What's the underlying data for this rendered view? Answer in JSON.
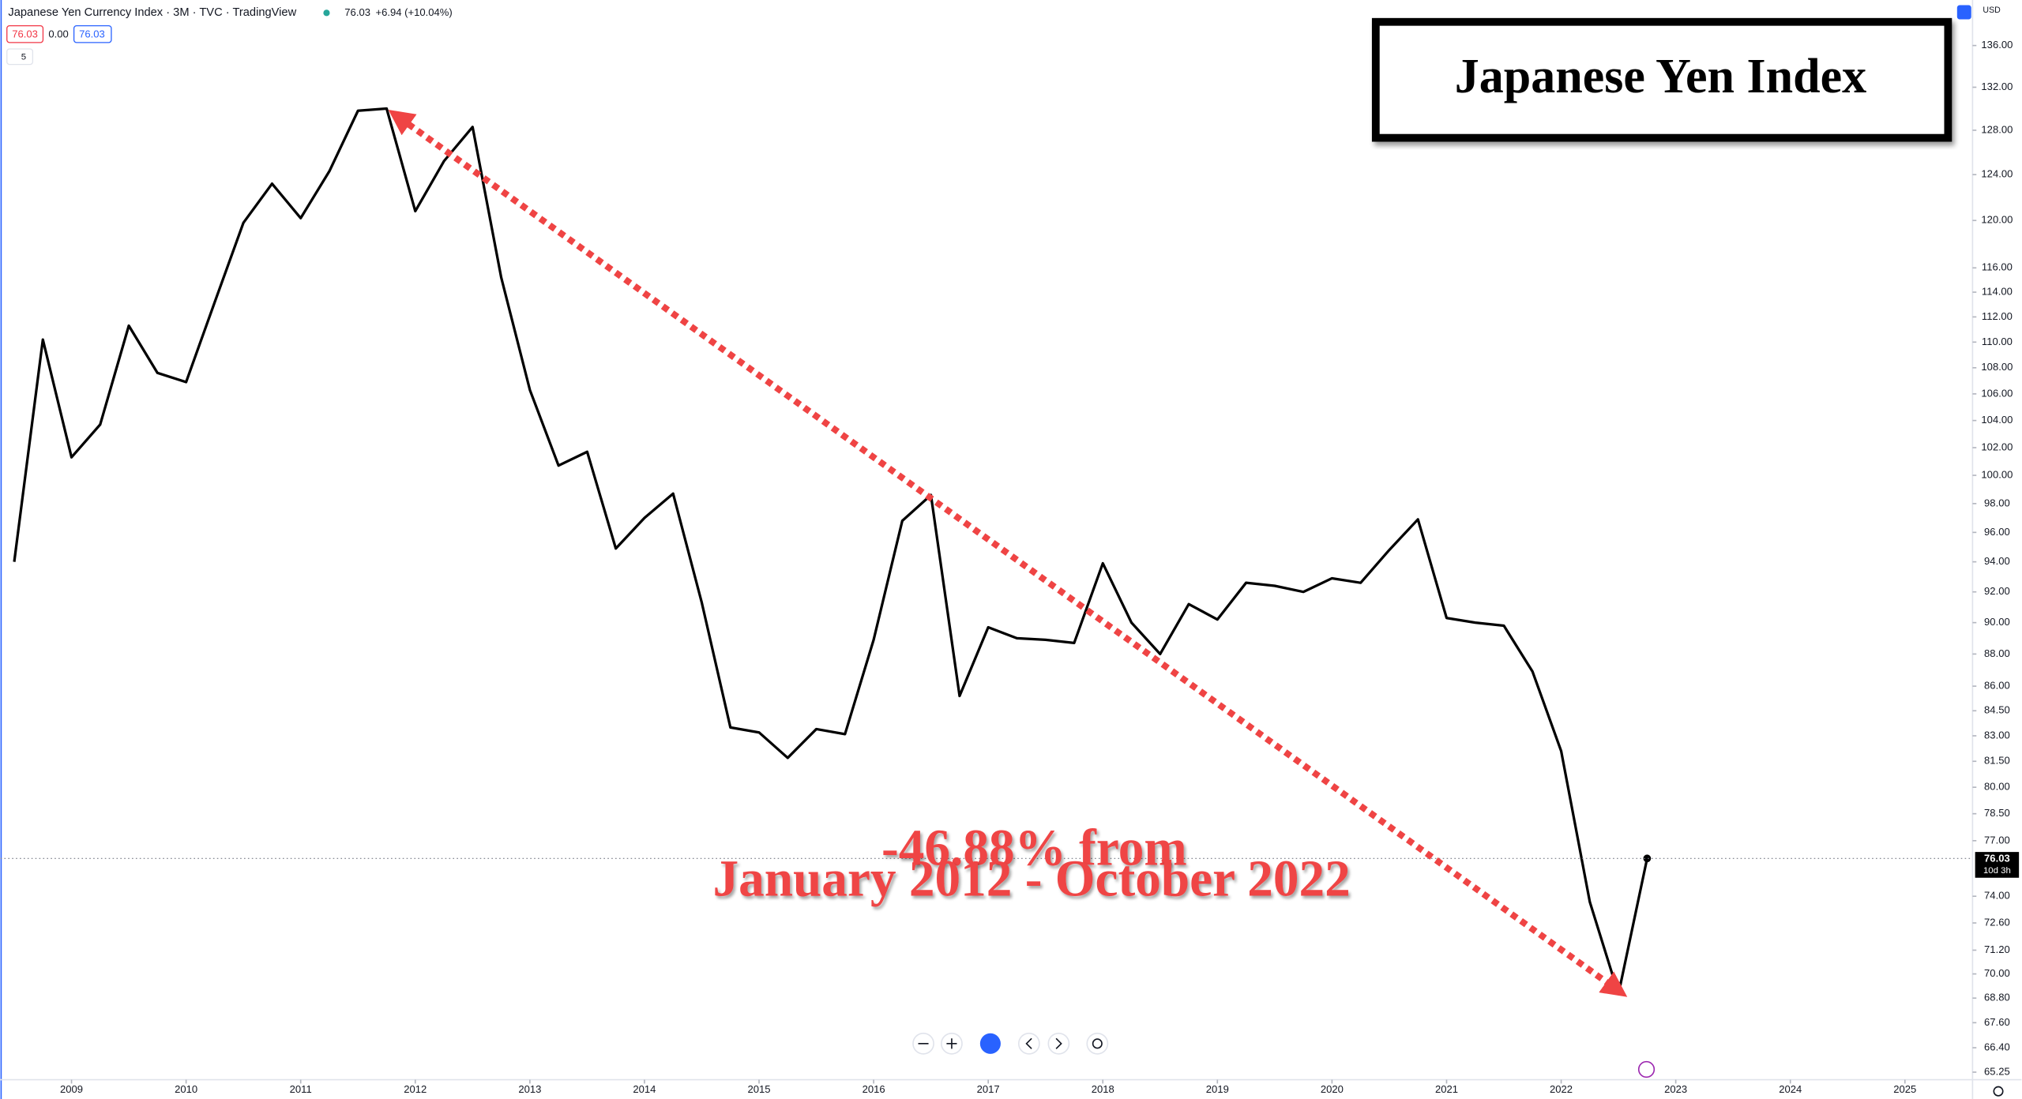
{
  "header": {
    "title": "Japanese Yen Currency Index · 3M · TVC · TradingView",
    "last": "76.03",
    "change": "+6.94 (+10.04%)",
    "bid": "76.03",
    "spread": "0.00",
    "ask": "76.03",
    "indicators": "5",
    "currency": "USD"
  },
  "chart_data": {
    "type": "line",
    "title": "Japanese Yen Index",
    "annotation": [
      "-46.88% from",
      "January 2012 - October 2022"
    ],
    "x": [
      2008.5,
      2008.75,
      2009,
      2009.25,
      2009.5,
      2009.75,
      2010,
      2010.25,
      2010.5,
      2010.75,
      2011,
      2011.25,
      2011.5,
      2011.75,
      2012,
      2012.25,
      2012.5,
      2012.75,
      2013,
      2013.25,
      2013.5,
      2013.75,
      2014,
      2014.25,
      2014.5,
      2014.75,
      2015,
      2015.25,
      2015.5,
      2015.75,
      2016,
      2016.25,
      2016.5,
      2016.75,
      2017,
      2017.25,
      2017.5,
      2017.75,
      2018,
      2018.25,
      2018.5,
      2018.75,
      2019,
      2019.25,
      2019.5,
      2019.75,
      2020,
      2020.25,
      2020.5,
      2020.75,
      2021,
      2021.25,
      2021.5,
      2021.75,
      2022,
      2022.25,
      2022.5,
      2022.75
    ],
    "series": [
      {
        "name": "Japanese Yen Currency Index",
        "color": "#000000",
        "values": [
          94.0,
          110.2,
          101.3,
          103.7,
          111.3,
          107.6,
          106.9,
          113.2,
          119.8,
          123.2,
          120.2,
          124.3,
          129.8,
          130.0,
          120.8,
          125.2,
          128.3,
          115.2,
          106.3,
          100.7,
          101.7,
          94.9,
          97.0,
          98.7,
          91.3,
          83.5,
          83.2,
          81.7,
          83.4,
          83.1,
          88.9,
          96.8,
          98.6,
          85.4,
          89.7,
          89.0,
          88.9,
          88.7,
          93.9,
          90.0,
          88.0,
          91.2,
          90.2,
          92.6,
          92.4,
          92.0,
          92.9,
          92.6,
          94.8,
          96.9,
          90.3,
          90.0,
          89.8,
          86.9,
          82.1,
          73.7,
          69.0,
          76.03
        ]
      }
    ],
    "xlim": [
      2008.38,
      2025.59
    ],
    "xticks": [
      2009,
      2010,
      2011,
      2012,
      2013,
      2014,
      2015,
      2016,
      2017,
      2018,
      2019,
      2020,
      2021,
      2022,
      2023,
      2024,
      2025
    ],
    "ylim": [
      64.9,
      140.5
    ],
    "log_scale": true,
    "grid": false,
    "yticks": [
      {
        "value": 136,
        "label": "136.00"
      },
      {
        "value": 132,
        "label": "132.00"
      },
      {
        "value": 128,
        "label": "128.00"
      },
      {
        "value": 124,
        "label": "124.00"
      },
      {
        "value": 120,
        "label": "120.00"
      },
      {
        "value": 116,
        "label": "116.00"
      },
      {
        "value": 114,
        "label": "114.00"
      },
      {
        "value": 112,
        "label": "112.00"
      },
      {
        "value": 110,
        "label": "110.00"
      },
      {
        "value": 108,
        "label": "108.00"
      },
      {
        "value": 106,
        "label": "106.00"
      },
      {
        "value": 104,
        "label": "104.00"
      },
      {
        "value": 102,
        "label": "102.00"
      },
      {
        "value": 100,
        "label": "100.00"
      },
      {
        "value": 98,
        "label": "98.00"
      },
      {
        "value": 96,
        "label": "96.00"
      },
      {
        "value": 94,
        "label": "94.00"
      },
      {
        "value": 92,
        "label": "92.00"
      },
      {
        "value": 90,
        "label": "90.00"
      },
      {
        "value": 88,
        "label": "88.00"
      },
      {
        "value": 86,
        "label": "86.00"
      },
      {
        "value": 84.5,
        "label": "84.50"
      },
      {
        "value": 83,
        "label": "83.00"
      },
      {
        "value": 81.5,
        "label": "81.50"
      },
      {
        "value": 80,
        "label": "80.00"
      },
      {
        "value": 78.5,
        "label": "78.50"
      },
      {
        "value": 77,
        "label": "77.00"
      },
      {
        "value": 74,
        "label": "74.00"
      },
      {
        "value": 72.6,
        "label": "72.60"
      },
      {
        "value": 71.2,
        "label": "71.20"
      },
      {
        "value": 70,
        "label": "70.00"
      },
      {
        "value": 68.8,
        "label": "68.80"
      },
      {
        "value": 67.6,
        "label": "67.60"
      },
      {
        "value": 66.4,
        "label": "66.40"
      },
      {
        "value": 65.25,
        "label": "65.25"
      }
    ],
    "price_label": {
      "value": 76.03,
      "label": "76.03",
      "countdown": "10d 3h"
    }
  }
}
